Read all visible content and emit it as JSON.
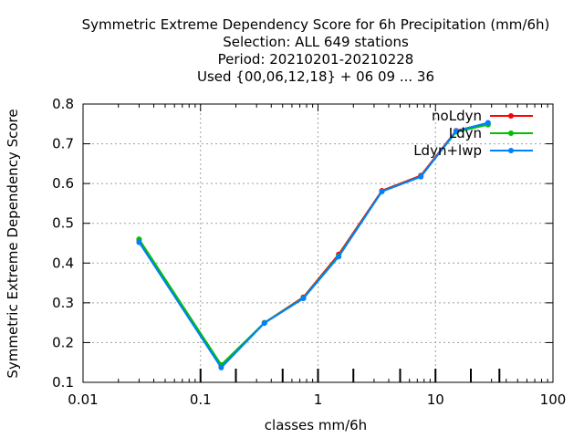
{
  "chart_data": {
    "type": "line",
    "title_lines": [
      "Symmetric Extreme Dependency Score  for 6h Precipitation (mm/6h)",
      "Selection: ALL    649 stations",
      "Period: 20210201-20210228",
      "Used {00,06,12,18} + 06 09 ... 36"
    ],
    "xlabel": "classes mm/6h",
    "ylabel": "Symmetric Extreme Dependency Score",
    "xscale": "log",
    "xlim": [
      0.01,
      100
    ],
    "ylim": [
      0.1,
      0.8
    ],
    "xticks": [
      "0.01",
      "0.1",
      "1",
      "10",
      "100"
    ],
    "yticks": [
      "0.1",
      "0.2",
      "0.3",
      "0.4",
      "0.5",
      "0.6",
      "0.7",
      "0.8"
    ],
    "grid": true,
    "legend_position": "top-right",
    "x": [
      0.03,
      0.15,
      0.35,
      0.75,
      1.5,
      3.5,
      7.5,
      15,
      28
    ],
    "series": [
      {
        "name": "noLdyn",
        "color": "#ff0000",
        "values": [
          0.458,
          0.142,
          0.25,
          0.314,
          0.422,
          0.582,
          0.62,
          0.733,
          0.752
        ]
      },
      {
        "name": "Ldyn",
        "color": "#00c000",
        "values": [
          0.46,
          0.144,
          0.25,
          0.312,
          0.418,
          0.58,
          0.618,
          0.73,
          0.748
        ]
      },
      {
        "name": "Ldyn+lwp",
        "color": "#0080ff",
        "values": [
          0.452,
          0.137,
          0.249,
          0.311,
          0.416,
          0.58,
          0.617,
          0.732,
          0.753
        ]
      }
    ],
    "bottom_ticks_x": [
      0.1,
      0.2,
      0.5,
      1,
      2,
      5,
      10,
      20,
      35
    ]
  }
}
